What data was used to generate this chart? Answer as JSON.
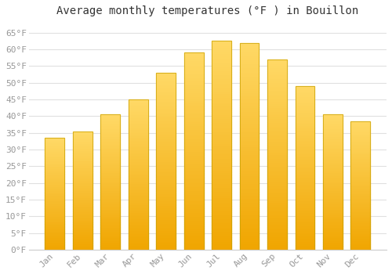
{
  "title": "Average monthly temperatures (°F ) in Bouillon",
  "months": [
    "Jan",
    "Feb",
    "Mar",
    "Apr",
    "May",
    "Jun",
    "Jul",
    "Aug",
    "Sep",
    "Oct",
    "Nov",
    "Dec"
  ],
  "values": [
    33.5,
    35.5,
    40.5,
    45,
    53,
    59,
    62.5,
    62,
    57,
    49,
    40.5,
    38.5
  ],
  "bar_color_top": "#FFD966",
  "bar_color_bottom": "#F0A500",
  "bar_edge_color": "#C8A000",
  "ylim": [
    0,
    68
  ],
  "yticks": [
    0,
    5,
    10,
    15,
    20,
    25,
    30,
    35,
    40,
    45,
    50,
    55,
    60,
    65
  ],
  "ytick_labels": [
    "0°F",
    "5°F",
    "10°F",
    "15°F",
    "20°F",
    "25°F",
    "30°F",
    "35°F",
    "40°F",
    "45°F",
    "50°F",
    "55°F",
    "60°F",
    "65°F"
  ],
  "background_color": "#ffffff",
  "plot_bg_color": "#ffffff",
  "grid_color": "#e0e0e0",
  "title_fontsize": 10,
  "tick_fontsize": 8,
  "tick_color": "#999999",
  "font_family": "monospace"
}
